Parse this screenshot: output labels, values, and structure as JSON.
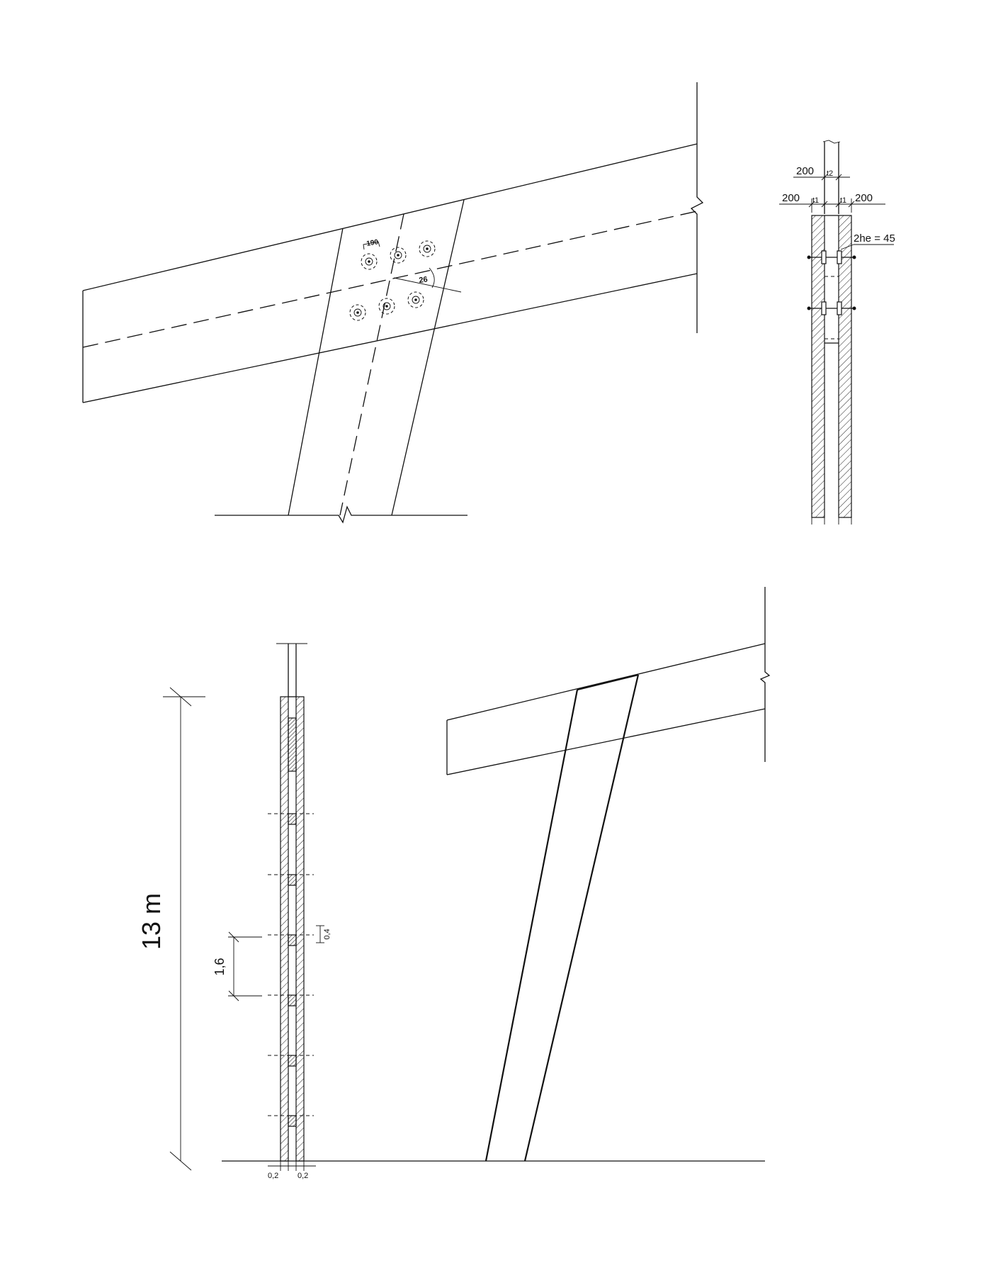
{
  "top_detail": {
    "bolt_spacing_label": "190",
    "angle_label": "26"
  },
  "section": {
    "dim_top": {
      "left": "200",
      "t": "t2"
    },
    "dim_mid": {
      "left": "200",
      "t_left": "t1",
      "t_right": "t1",
      "right": "200"
    },
    "gap_label": "2he = 45"
  },
  "column": {
    "height_label": "13 m",
    "spacing_label": "1,6",
    "packer_label": "0,4",
    "bottom_left": "0,2",
    "bottom_right": "0,2"
  }
}
